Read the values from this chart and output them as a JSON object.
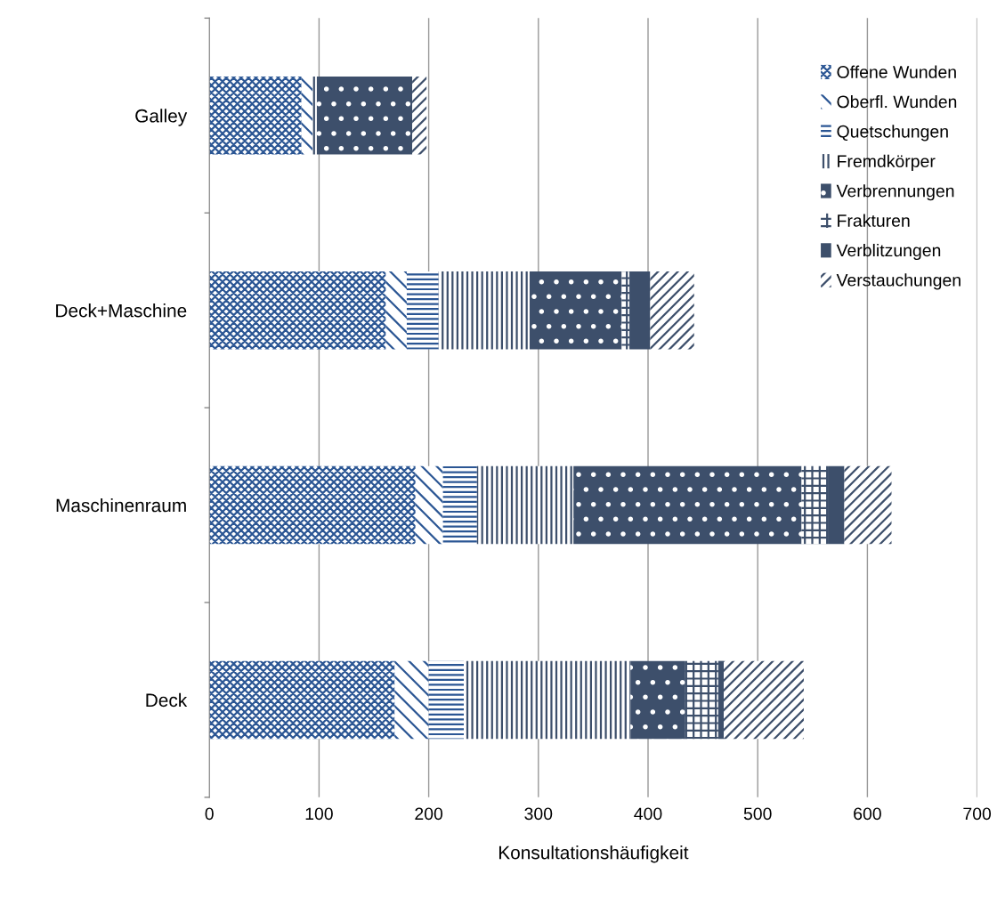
{
  "chart_data": {
    "type": "bar",
    "orientation": "horizontal",
    "stacked": true,
    "categories": [
      "Galley",
      "Deck+Maschine",
      "Maschinenraum",
      "Deck"
    ],
    "series": [
      {
        "name": "Offene Wunden",
        "color": "#2b5694",
        "values": [
          84,
          161,
          188,
          169
        ]
      },
      {
        "name": "Oberfl. Wunden",
        "color": "#2b5694",
        "values": [
          10,
          19,
          25,
          31
        ]
      },
      {
        "name": "Quetschungen",
        "color": "#2b5694",
        "values": [
          0,
          29,
          31,
          32
        ]
      },
      {
        "name": "Fremdkörper",
        "color": "#3d4f6b",
        "values": [
          4,
          83,
          88,
          152
        ]
      },
      {
        "name": "Verbrennungen",
        "color": "#3d4f6b",
        "values": [
          87,
          84,
          208,
          50
        ]
      },
      {
        "name": "Frakturen",
        "color": "#3d4f6b",
        "values": [
          0,
          7,
          24,
          30
        ]
      },
      {
        "name": "Verblitzungen",
        "color": "#3d4f6b",
        "values": [
          0,
          19,
          15,
          5
        ]
      },
      {
        "name": "Verstauchungen",
        "color": "#3d4f6b",
        "values": [
          13,
          40,
          43,
          73
        ]
      }
    ],
    "xlabel": "Konsultationshäufigkeit",
    "xlim": [
      0,
      700
    ],
    "xticks": [
      0,
      100,
      200,
      300,
      400,
      500,
      600,
      700
    ],
    "grid": "x",
    "legend": "top right"
  }
}
